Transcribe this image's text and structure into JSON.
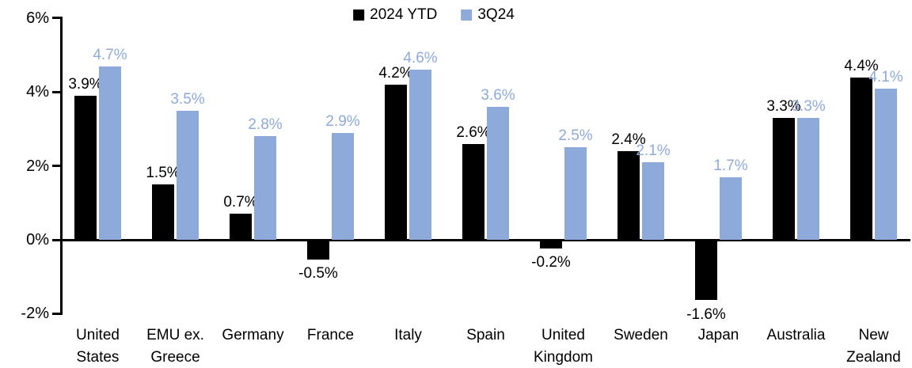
{
  "colors": {
    "series_2024ytd": "#000000",
    "series_3q24": "#8EAADB",
    "axis": "#000000",
    "background": "#FFFFFF",
    "label_2024ytd": "#000000",
    "label_3q24": "#8EAADB"
  },
  "chart_data": {
    "type": "bar",
    "title": "",
    "xlabel": "",
    "ylabel": "",
    "categories": [
      "United States",
      "EMU ex. Greece",
      "Germany",
      "France",
      "Italy",
      "Spain",
      "United Kingdom",
      "Sweden",
      "Japan",
      "Australia",
      "New Zealand"
    ],
    "category_lines": [
      [
        "United",
        "States"
      ],
      [
        "EMU ex.",
        "Greece"
      ],
      [
        "Germany"
      ],
      [
        "France"
      ],
      [
        "Italy"
      ],
      [
        "Spain"
      ],
      [
        "United",
        "Kingdom"
      ],
      [
        "Sweden"
      ],
      [
        "Japan"
      ],
      [
        "Australia"
      ],
      [
        "New",
        "Zealand"
      ]
    ],
    "series": [
      {
        "name": "2024 YTD",
        "color": "#000000",
        "values": [
          3.9,
          1.5,
          0.7,
          -0.5,
          4.2,
          2.6,
          -0.2,
          2.4,
          -1.6,
          3.3,
          4.4
        ],
        "labels": [
          "3.9%",
          "1.5%",
          "0.7%",
          "-0.5%",
          "4.2%",
          "2.6%",
          "-0.2%",
          "2.4%",
          "-1.6%",
          "3.3%",
          "4.4%"
        ]
      },
      {
        "name": "3Q24",
        "color": "#8EAADB",
        "values": [
          4.7,
          3.5,
          2.8,
          2.9,
          4.6,
          3.6,
          2.5,
          2.1,
          1.7,
          3.3,
          4.1
        ],
        "labels": [
          "4.7%",
          "3.5%",
          "2.8%",
          "2.9%",
          "4.6%",
          "3.6%",
          "2.5%",
          "2.1%",
          "1.7%",
          "3.3%",
          "4.1%"
        ]
      }
    ],
    "ylim": [
      -2,
      6
    ],
    "yticks": [
      6,
      4,
      2,
      0,
      -2
    ],
    "ytick_labels": [
      "6%",
      "4%",
      "2%",
      "0%",
      "-2%"
    ],
    "legend_position": "top-center",
    "grid": false
  }
}
